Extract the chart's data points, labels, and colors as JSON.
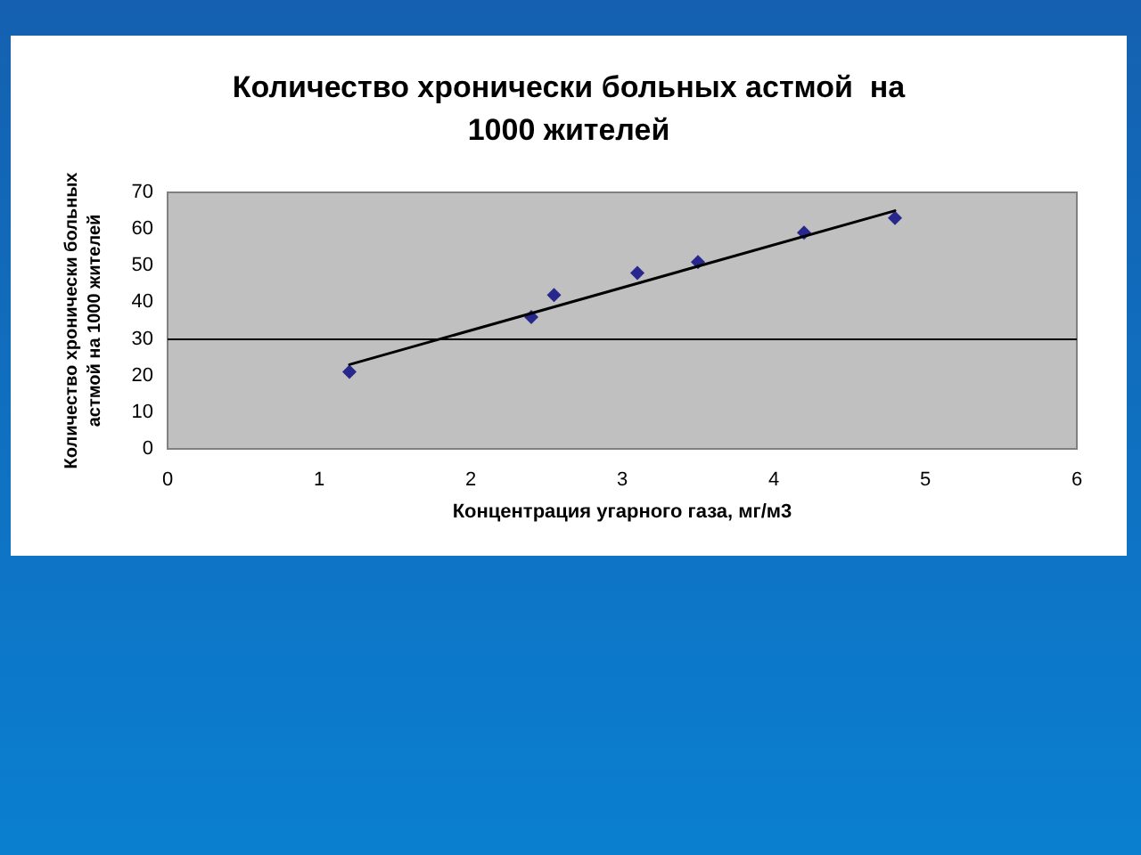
{
  "chart_data": {
    "type": "scatter",
    "title": "Количество хронически больных астмой  на 1000 жителей",
    "xlabel": "Концентрация угарного газа, мг/м3",
    "ylabel": "Количество хронически больных астмой на 1000 жителей",
    "xlim": [
      0,
      6
    ],
    "xticks": [
      0,
      1,
      2,
      3,
      4,
      5,
      6
    ],
    "ylim": [
      0,
      70
    ],
    "yticks": [
      0,
      10,
      20,
      30,
      40,
      50,
      60,
      70
    ],
    "grid": false,
    "marker": "diamond",
    "series": [
      {
        "color": "#000080",
        "x": [
          1.2,
          2.4,
          2.55,
          3.1,
          3.5,
          4.2,
          4.8
        ],
        "values": [
          21,
          36,
          42,
          48,
          51,
          59,
          63
        ]
      },
      {
        "type": "line",
        "color": "#000000",
        "x": [
          1.2,
          4.8
        ],
        "values": [
          23,
          65
        ],
        "line_style": "solid",
        "marker": "none"
      }
    ],
    "ref_lines": [
      {
        "axis": "y",
        "value": 30,
        "color": "#000000"
      }
    ]
  }
}
